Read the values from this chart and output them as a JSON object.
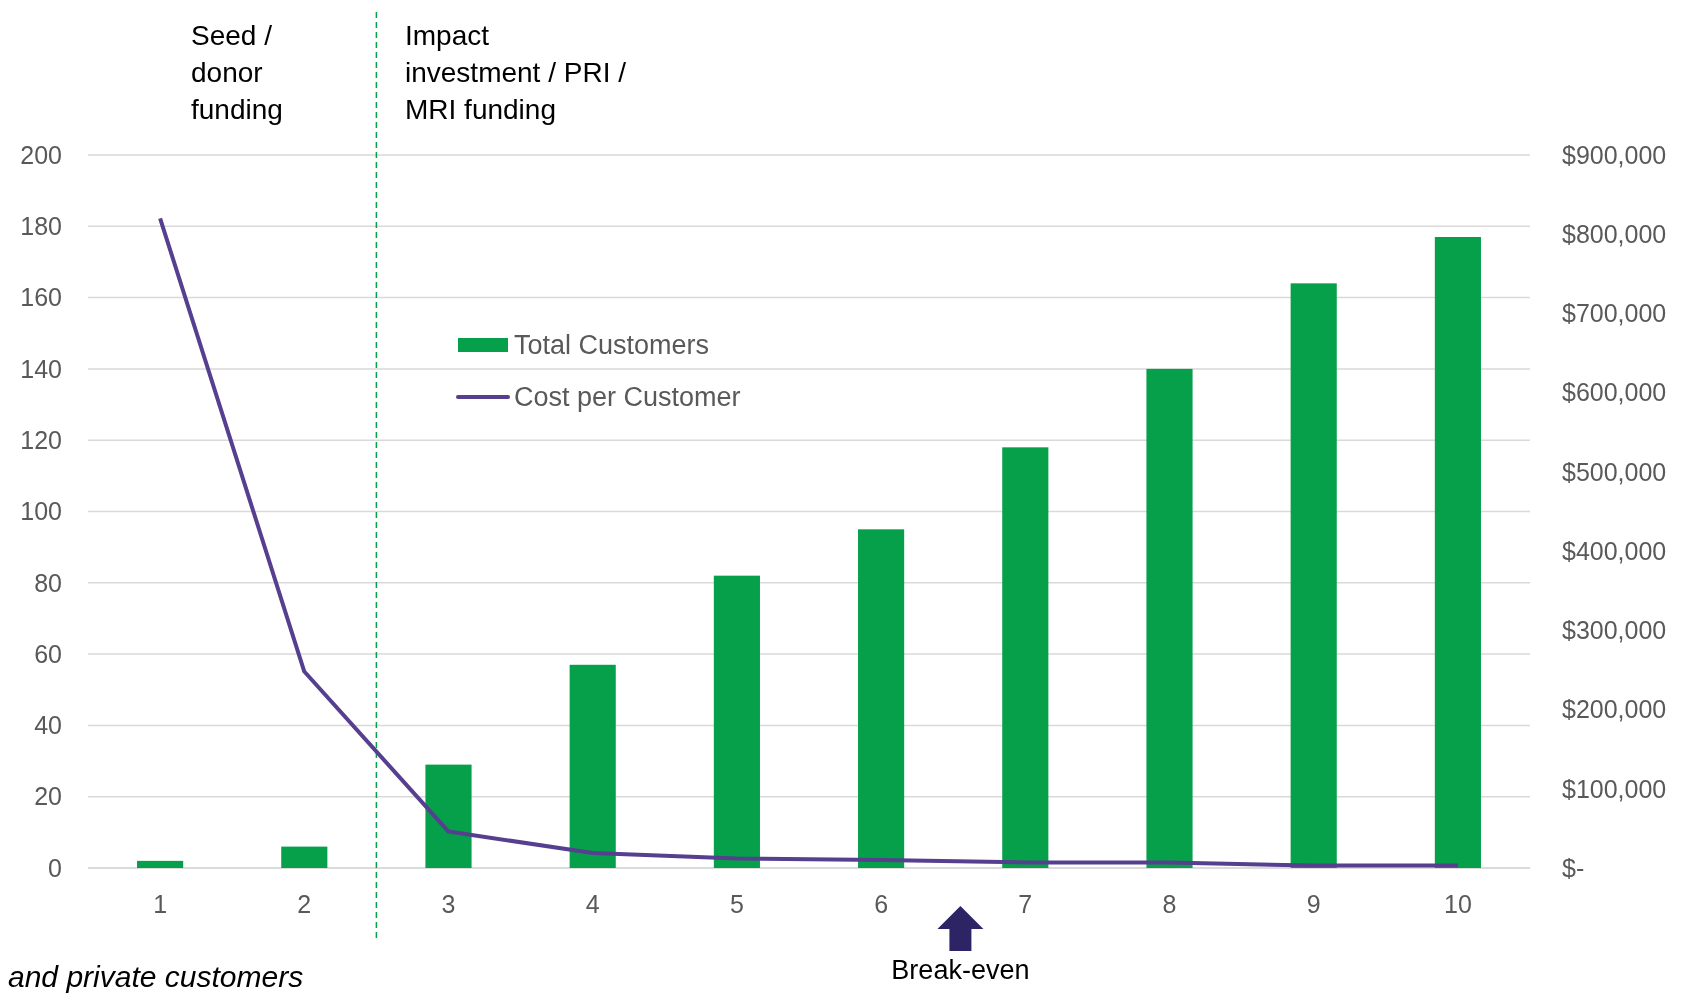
{
  "chart_data": {
    "type": "bar",
    "x": [
      1,
      2,
      3,
      4,
      5,
      6,
      7,
      8,
      9,
      10
    ],
    "xlim": [
      0.5,
      10.5
    ],
    "xticks": [
      1,
      2,
      3,
      4,
      5,
      6,
      7,
      8,
      9,
      10
    ],
    "series": [
      {
        "name": "Total Customers",
        "color": "#07a04a",
        "values": [
          2,
          6,
          29,
          57,
          82,
          95,
          118,
          140,
          164,
          177
        ]
      },
      {
        "name": "Cost per Customer",
        "type": "line",
        "axis": "y2",
        "color": "#553f8e",
        "values": [
          820000,
          248000,
          46000,
          19000,
          12000,
          10000,
          7000,
          7000,
          3000,
          3000
        ]
      }
    ],
    "ylim": [
      0,
      200
    ],
    "yticks": [
      0,
      20,
      40,
      60,
      80,
      100,
      120,
      140,
      160,
      180,
      200
    ],
    "y2lim": [
      0,
      900000
    ],
    "y2ticks": [
      {
        "value": 0,
        "label": "$-"
      },
      {
        "value": 100000,
        "label": "$100,000"
      },
      {
        "value": 200000,
        "label": "$200,000"
      },
      {
        "value": 300000,
        "label": "$300,000"
      },
      {
        "value": 400000,
        "label": "$400,000"
      },
      {
        "value": 500000,
        "label": "$500,000"
      },
      {
        "value": 600000,
        "label": "$600,000"
      },
      {
        "value": 700000,
        "label": "$700,000"
      },
      {
        "value": 800000,
        "label": "$800,000"
      },
      {
        "value": 900000,
        "label": "$900,000"
      }
    ],
    "grid": "y",
    "legend": "top left",
    "marker": "none",
    "ref_lines": [
      {
        "axis": "x",
        "value": 2.5,
        "color": "#07a04a",
        "line_style": "dashed"
      }
    ],
    "annotations": [
      "Seed / donor funding",
      "Impact investment / PRI / MRI funding",
      "Break-even",
      "and private customers"
    ]
  }
}
